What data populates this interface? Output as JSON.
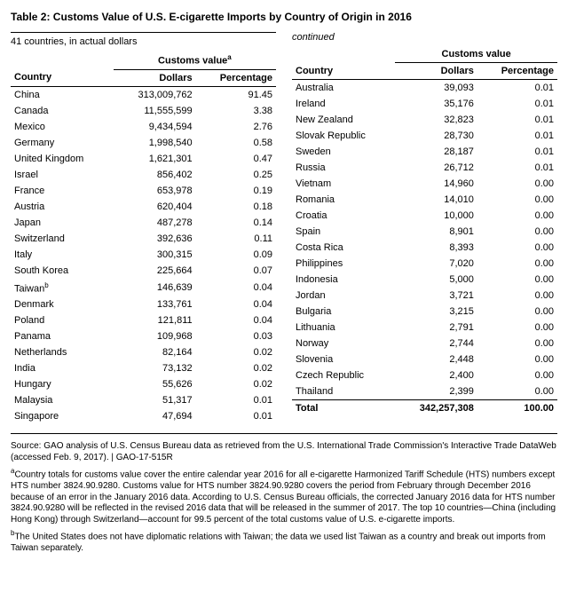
{
  "title": "Table 2: Customs Value of U.S. E-cigarette Imports by Country of Origin in 2016",
  "subtitle": "41 countries, in actual dollars",
  "group_label": "Customs value",
  "group_label_sup": "a",
  "continued_label": "continued",
  "headers": {
    "country": "Country",
    "dollars": "Dollars",
    "percentage": "Percentage"
  },
  "left_rows": [
    {
      "country": "China",
      "dollars": "313,009,762",
      "pct": "91.45"
    },
    {
      "country": "Canada",
      "dollars": "11,555,599",
      "pct": "3.38"
    },
    {
      "country": "Mexico",
      "dollars": "9,434,594",
      "pct": "2.76"
    },
    {
      "country": "Germany",
      "dollars": "1,998,540",
      "pct": "0.58"
    },
    {
      "country": "United Kingdom",
      "dollars": "1,621,301",
      "pct": "0.47"
    },
    {
      "country": "Israel",
      "dollars": "856,402",
      "pct": "0.25"
    },
    {
      "country": "France",
      "dollars": "653,978",
      "pct": "0.19"
    },
    {
      "country": "Austria",
      "dollars": "620,404",
      "pct": "0.18"
    },
    {
      "country": "Japan",
      "dollars": "487,278",
      "pct": "0.14"
    },
    {
      "country": "Switzerland",
      "dollars": "392,636",
      "pct": "0.11"
    },
    {
      "country": "Italy",
      "dollars": "300,315",
      "pct": "0.09"
    },
    {
      "country": "South Korea",
      "dollars": "225,664",
      "pct": "0.07"
    },
    {
      "country": "Taiwan",
      "sup": "b",
      "dollars": "146,639",
      "pct": "0.04"
    },
    {
      "country": "Denmark",
      "dollars": "133,761",
      "pct": "0.04"
    },
    {
      "country": "Poland",
      "dollars": "121,811",
      "pct": "0.04"
    },
    {
      "country": "Panama",
      "dollars": "109,968",
      "pct": "0.03"
    },
    {
      "country": "Netherlands",
      "dollars": "82,164",
      "pct": "0.02"
    },
    {
      "country": "India",
      "dollars": "73,132",
      "pct": "0.02"
    },
    {
      "country": "Hungary",
      "dollars": "55,626",
      "pct": "0.02"
    },
    {
      "country": "Malaysia",
      "dollars": "51,317",
      "pct": "0.01"
    },
    {
      "country": "Singapore",
      "dollars": "47,694",
      "pct": "0.01"
    }
  ],
  "right_rows": [
    {
      "country": "Australia",
      "dollars": "39,093",
      "pct": "0.01"
    },
    {
      "country": "Ireland",
      "dollars": "35,176",
      "pct": "0.01"
    },
    {
      "country": "New Zealand",
      "dollars": "32,823",
      "pct": "0.01"
    },
    {
      "country": "Slovak Republic",
      "dollars": "28,730",
      "pct": "0.01"
    },
    {
      "country": "Sweden",
      "dollars": "28,187",
      "pct": "0.01"
    },
    {
      "country": "Russia",
      "dollars": "26,712",
      "pct": "0.01"
    },
    {
      "country": "Vietnam",
      "dollars": "14,960",
      "pct": "0.00"
    },
    {
      "country": "Romania",
      "dollars": "14,010",
      "pct": "0.00"
    },
    {
      "country": "Croatia",
      "dollars": "10,000",
      "pct": "0.00"
    },
    {
      "country": "Spain",
      "dollars": "8,901",
      "pct": "0.00"
    },
    {
      "country": "Costa Rica",
      "dollars": "8,393",
      "pct": "0.00"
    },
    {
      "country": "Philippines",
      "dollars": "7,020",
      "pct": "0.00"
    },
    {
      "country": "Indonesia",
      "dollars": "5,000",
      "pct": "0.00"
    },
    {
      "country": "Jordan",
      "dollars": "3,721",
      "pct": "0.00"
    },
    {
      "country": "Bulgaria",
      "dollars": "3,215",
      "pct": "0.00"
    },
    {
      "country": "Lithuania",
      "dollars": "2,791",
      "pct": "0.00"
    },
    {
      "country": "Norway",
      "dollars": "2,744",
      "pct": "0.00"
    },
    {
      "country": "Slovenia",
      "dollars": "2,448",
      "pct": "0.00"
    },
    {
      "country": "Czech Republic",
      "dollars": "2,400",
      "pct": "0.00"
    },
    {
      "country": "Thailand",
      "dollars": "2,399",
      "pct": "0.00"
    }
  ],
  "total": {
    "label": "Total",
    "dollars": "342,257,308",
    "pct": "100.00"
  },
  "source": "Source: GAO analysis of U.S. Census Bureau data as retrieved from the U.S. International Trade Commission's Interactive Trade DataWeb (accessed Feb. 9, 2017).  |  GAO-17-515R",
  "footnote_a_sup": "a",
  "footnote_a": "Country totals for customs value cover the entire calendar year 2016 for all e-cigarette Harmonized Tariff Schedule (HTS) numbers except HTS number 3824.90.9280. Customs value for HTS number 3824.90.9280 covers the period from February through December 2016 because of an error in the January 2016 data. According to U.S. Census Bureau officials, the corrected January 2016 data for HTS number 3824.90.9280 will be reflected in the revised 2016 data that will be released in the summer of 2017. The top 10 countries—China (including Hong Kong) through Switzerland—account for 99.5 percent of the total customs value of U.S. e-cigarette imports.",
  "footnote_b_sup": "b",
  "footnote_b": "The United States does not have diplomatic relations with Taiwan; the data we used list Taiwan as a country and break out imports from Taiwan separately."
}
